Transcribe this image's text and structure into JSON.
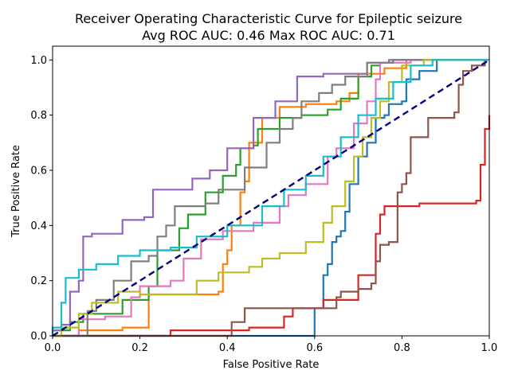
{
  "chart_data": {
    "type": "line",
    "title": "Receiver Operating Characteristic Curve for Epileptic seizure",
    "subtitle": "Avg ROC AUC: 0.46  Max ROC AUC: 0.71",
    "xlabel": "False Positive Rate",
    "ylabel": "True Positive Rate",
    "xlim": [
      0,
      1
    ],
    "ylim": [
      0,
      1.05
    ],
    "xticks": [
      "0.0",
      "0.2",
      "0.4",
      "0.6",
      "0.8",
      "1.0"
    ],
    "yticks": [
      "0.0",
      "0.2",
      "0.4",
      "0.6",
      "0.8",
      "1.0"
    ],
    "grid": false,
    "legend": false,
    "diagonal": {
      "x": [
        0,
        1
      ],
      "y": [
        0,
        1
      ],
      "color": "#000080",
      "style": "dashed"
    },
    "series": [
      {
        "color": "#1f77b4",
        "points": [
          [
            0,
            0
          ],
          [
            0.54,
            0
          ],
          [
            0.6,
            0
          ],
          [
            0.6,
            0.1
          ],
          [
            0.61,
            0.1
          ],
          [
            0.62,
            0.22
          ],
          [
            0.63,
            0.26
          ],
          [
            0.64,
            0.34
          ],
          [
            0.65,
            0.36
          ],
          [
            0.66,
            0.38
          ],
          [
            0.67,
            0.45
          ],
          [
            0.68,
            0.55
          ],
          [
            0.7,
            0.65
          ],
          [
            0.72,
            0.7
          ],
          [
            0.74,
            0.79
          ],
          [
            0.76,
            0.8
          ],
          [
            0.77,
            0.84
          ],
          [
            0.8,
            0.85
          ],
          [
            0.81,
            0.93
          ],
          [
            0.84,
            0.96
          ],
          [
            0.88,
            1.0
          ],
          [
            1,
            1.0
          ]
        ]
      },
      {
        "color": "#ff7f0e",
        "points": [
          [
            0,
            0
          ],
          [
            0.04,
            0
          ],
          [
            0.06,
            0.02
          ],
          [
            0.16,
            0.03
          ],
          [
            0.22,
            0.03
          ],
          [
            0.22,
            0.15
          ],
          [
            0.28,
            0.15
          ],
          [
            0.38,
            0.16
          ],
          [
            0.39,
            0.16
          ],
          [
            0.39,
            0.26
          ],
          [
            0.4,
            0.31
          ],
          [
            0.41,
            0.31
          ],
          [
            0.41,
            0.4
          ],
          [
            0.43,
            0.52
          ],
          [
            0.44,
            0.56
          ],
          [
            0.45,
            0.56
          ],
          [
            0.45,
            0.7
          ],
          [
            0.47,
            0.7
          ],
          [
            0.48,
            0.79
          ],
          [
            0.51,
            0.79
          ],
          [
            0.52,
            0.83
          ],
          [
            0.58,
            0.84
          ],
          [
            0.65,
            0.85
          ],
          [
            0.68,
            0.88
          ],
          [
            0.7,
            0.95
          ],
          [
            0.76,
            0.97
          ],
          [
            0.81,
            1.0
          ],
          [
            1,
            1.0
          ]
        ]
      },
      {
        "color": "#2ca02c",
        "points": [
          [
            0,
            0
          ],
          [
            0,
            0.02
          ],
          [
            0.01,
            0.02
          ],
          [
            0.04,
            0.05
          ],
          [
            0.07,
            0.08
          ],
          [
            0.16,
            0.13
          ],
          [
            0.22,
            0.18
          ],
          [
            0.24,
            0.31
          ],
          [
            0.29,
            0.39
          ],
          [
            0.31,
            0.44
          ],
          [
            0.35,
            0.52
          ],
          [
            0.39,
            0.58
          ],
          [
            0.42,
            0.62
          ],
          [
            0.43,
            0.68
          ],
          [
            0.46,
            0.69
          ],
          [
            0.47,
            0.75
          ],
          [
            0.52,
            0.79
          ],
          [
            0.55,
            0.79
          ],
          [
            0.57,
            0.8
          ],
          [
            0.63,
            0.82
          ],
          [
            0.66,
            0.86
          ],
          [
            0.7,
            0.94
          ],
          [
            0.73,
            0.98
          ],
          [
            0.75,
            0.99
          ],
          [
            0.78,
            1.0
          ],
          [
            1,
            1.0
          ]
        ]
      },
      {
        "color": "#d62728",
        "points": [
          [
            0,
            0
          ],
          [
            0.25,
            0
          ],
          [
            0.27,
            0.02
          ],
          [
            0.45,
            0.03
          ],
          [
            0.53,
            0.07
          ],
          [
            0.55,
            0.1
          ],
          [
            0.62,
            0.13
          ],
          [
            0.7,
            0.22
          ],
          [
            0.74,
            0.37
          ],
          [
            0.75,
            0.44
          ],
          [
            0.76,
            0.47
          ],
          [
            0.81,
            0.47
          ],
          [
            0.84,
            0.48
          ],
          [
            0.92,
            0.48
          ],
          [
            0.97,
            0.49
          ],
          [
            0.98,
            0.62
          ],
          [
            0.99,
            0.75
          ],
          [
            1,
            0.8
          ]
        ]
      },
      {
        "color": "#9467bd",
        "points": [
          [
            0,
            0
          ],
          [
            0,
            0.02
          ],
          [
            0.02,
            0.04
          ],
          [
            0.04,
            0.16
          ],
          [
            0.06,
            0.2
          ],
          [
            0.07,
            0.36
          ],
          [
            0.09,
            0.37
          ],
          [
            0.16,
            0.42
          ],
          [
            0.21,
            0.43
          ],
          [
            0.23,
            0.53
          ],
          [
            0.32,
            0.57
          ],
          [
            0.36,
            0.6
          ],
          [
            0.4,
            0.68
          ],
          [
            0.46,
            0.79
          ],
          [
            0.51,
            0.85
          ],
          [
            0.56,
            0.94
          ],
          [
            0.62,
            0.95
          ],
          [
            0.72,
            0.99
          ],
          [
            0.77,
            1.0
          ],
          [
            1,
            1.0
          ]
        ]
      },
      {
        "color": "#8c564b",
        "points": [
          [
            0,
            0
          ],
          [
            0.36,
            0
          ],
          [
            0.41,
            0.05
          ],
          [
            0.44,
            0.1
          ],
          [
            0.58,
            0.1
          ],
          [
            0.65,
            0.14
          ],
          [
            0.66,
            0.16
          ],
          [
            0.7,
            0.17
          ],
          [
            0.73,
            0.19
          ],
          [
            0.74,
            0.27
          ],
          [
            0.75,
            0.33
          ],
          [
            0.77,
            0.34
          ],
          [
            0.79,
            0.52
          ],
          [
            0.8,
            0.55
          ],
          [
            0.81,
            0.59
          ],
          [
            0.82,
            0.64
          ],
          [
            0.82,
            0.72
          ],
          [
            0.84,
            0.72
          ],
          [
            0.86,
            0.79
          ],
          [
            0.92,
            0.81
          ],
          [
            0.93,
            0.91
          ],
          [
            0.94,
            0.96
          ],
          [
            0.96,
            0.98
          ],
          [
            0.99,
            1.0
          ],
          [
            1,
            1.0
          ]
        ]
      },
      {
        "color": "#e377c2",
        "points": [
          [
            0,
            0
          ],
          [
            0.04,
            0
          ],
          [
            0.06,
            0.06
          ],
          [
            0.12,
            0.07
          ],
          [
            0.18,
            0.14
          ],
          [
            0.2,
            0.18
          ],
          [
            0.27,
            0.2
          ],
          [
            0.3,
            0.28
          ],
          [
            0.34,
            0.35
          ],
          [
            0.39,
            0.38
          ],
          [
            0.46,
            0.41
          ],
          [
            0.52,
            0.47
          ],
          [
            0.54,
            0.51
          ],
          [
            0.58,
            0.55
          ],
          [
            0.63,
            0.65
          ],
          [
            0.65,
            0.68
          ],
          [
            0.69,
            0.77
          ],
          [
            0.72,
            0.85
          ],
          [
            0.74,
            0.93
          ],
          [
            0.75,
            0.99
          ],
          [
            0.82,
            1.0
          ],
          [
            1,
            1.0
          ]
        ]
      },
      {
        "color": "#7f7f7f",
        "points": [
          [
            0,
            0
          ],
          [
            0.06,
            0
          ],
          [
            0.08,
            0.09
          ],
          [
            0.1,
            0.13
          ],
          [
            0.14,
            0.2
          ],
          [
            0.18,
            0.27
          ],
          [
            0.22,
            0.29
          ],
          [
            0.24,
            0.36
          ],
          [
            0.26,
            0.4
          ],
          [
            0.28,
            0.47
          ],
          [
            0.35,
            0.48
          ],
          [
            0.38,
            0.53
          ],
          [
            0.44,
            0.61
          ],
          [
            0.49,
            0.7
          ],
          [
            0.52,
            0.75
          ],
          [
            0.55,
            0.79
          ],
          [
            0.57,
            0.85
          ],
          [
            0.61,
            0.88
          ],
          [
            0.64,
            0.91
          ],
          [
            0.67,
            0.94
          ],
          [
            0.72,
            0.99
          ],
          [
            0.78,
            1.0
          ],
          [
            1,
            1.0
          ]
        ]
      },
      {
        "color": "#bcbd22",
        "points": [
          [
            0,
            0
          ],
          [
            0.02,
            0.03
          ],
          [
            0.06,
            0.08
          ],
          [
            0.09,
            0.12
          ],
          [
            0.15,
            0.16
          ],
          [
            0.2,
            0.15
          ],
          [
            0.28,
            0.15
          ],
          [
            0.33,
            0.2
          ],
          [
            0.38,
            0.23
          ],
          [
            0.45,
            0.25
          ],
          [
            0.48,
            0.28
          ],
          [
            0.52,
            0.3
          ],
          [
            0.58,
            0.34
          ],
          [
            0.62,
            0.41
          ],
          [
            0.64,
            0.47
          ],
          [
            0.67,
            0.56
          ],
          [
            0.69,
            0.65
          ],
          [
            0.71,
            0.72
          ],
          [
            0.73,
            0.79
          ],
          [
            0.75,
            0.85
          ],
          [
            0.77,
            0.92
          ],
          [
            0.8,
            0.98
          ],
          [
            0.85,
            1.0
          ],
          [
            1,
            1.0
          ]
        ]
      },
      {
        "color": "#17becf",
        "points": [
          [
            0,
            0
          ],
          [
            0,
            0.03
          ],
          [
            0.02,
            0.12
          ],
          [
            0.03,
            0.21
          ],
          [
            0.06,
            0.24
          ],
          [
            0.1,
            0.26
          ],
          [
            0.15,
            0.29
          ],
          [
            0.2,
            0.31
          ],
          [
            0.27,
            0.32
          ],
          [
            0.33,
            0.36
          ],
          [
            0.4,
            0.4
          ],
          [
            0.48,
            0.47
          ],
          [
            0.53,
            0.53
          ],
          [
            0.58,
            0.58
          ],
          [
            0.62,
            0.65
          ],
          [
            0.66,
            0.72
          ],
          [
            0.7,
            0.8
          ],
          [
            0.74,
            0.86
          ],
          [
            0.78,
            0.92
          ],
          [
            0.82,
            0.98
          ],
          [
            0.87,
            1.0
          ],
          [
            1,
            1.0
          ]
        ]
      }
    ]
  }
}
